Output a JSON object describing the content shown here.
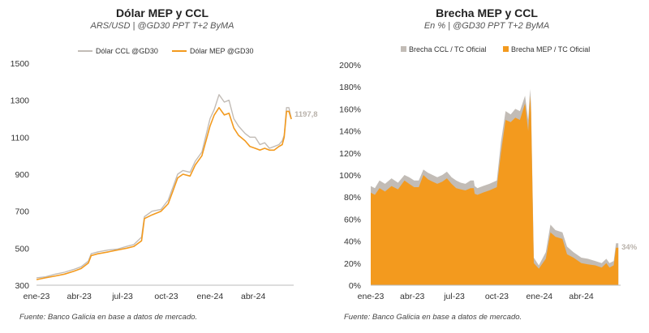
{
  "colors": {
    "mep": "#f39a1e",
    "ccl": "#c2bcb6",
    "endlabel": "#b9b2ab",
    "axis": "#333333"
  },
  "footnote": "Fuente: Banco Galicia en base a datos de mercado.",
  "chart_data": [
    {
      "type": "line",
      "title": "Dólar MEP y CCL",
      "subtitle": "ARS/USD | @GD30 PPT T+2 ByMA",
      "ylim": [
        300,
        1500
      ],
      "yticks": [
        "300",
        "500",
        "700",
        "900",
        "1100",
        "1300",
        "1500"
      ],
      "xtick_labels": [
        "ene-23",
        "abr-23",
        "jul-23",
        "oct-23",
        "ene-24",
        "abr-24"
      ],
      "xlim": [
        "2023-01-01",
        "2024-06-25"
      ],
      "x": [
        "2023-01-01",
        "2023-01-20",
        "2023-02-10",
        "2023-03-01",
        "2023-03-20",
        "2023-04-05",
        "2023-04-20",
        "2023-04-26",
        "2023-05-10",
        "2023-06-01",
        "2023-06-20",
        "2023-07-10",
        "2023-07-25",
        "2023-08-10",
        "2023-08-16",
        "2023-09-01",
        "2023-09-20",
        "2023-10-05",
        "2023-10-15",
        "2023-10-25",
        "2023-11-05",
        "2023-11-20",
        "2023-12-01",
        "2023-12-15",
        "2024-01-01",
        "2024-01-10",
        "2024-01-20",
        "2024-01-31",
        "2024-02-10",
        "2024-02-20",
        "2024-03-01",
        "2024-03-15",
        "2024-03-25",
        "2024-04-05",
        "2024-04-15",
        "2024-04-25",
        "2024-05-05",
        "2024-05-15",
        "2024-05-25",
        "2024-06-01",
        "2024-06-05",
        "2024-06-10",
        "2024-06-15",
        "2024-06-20"
      ],
      "series": [
        {
          "name": "Dólar CCL @GD30",
          "values": [
            340,
            345,
            360,
            370,
            385,
            400,
            430,
            470,
            480,
            490,
            495,
            510,
            520,
            560,
            670,
            700,
            710,
            760,
            830,
            900,
            920,
            910,
            970,
            1020,
            1200,
            1250,
            1330,
            1290,
            1300,
            1200,
            1160,
            1120,
            1100,
            1100,
            1060,
            1070,
            1040,
            1050,
            1060,
            1080,
            1110,
            1260,
            1260,
            1200
          ]
        },
        {
          "name": "Dólar MEP @GD30",
          "values": [
            330,
            340,
            350,
            360,
            375,
            390,
            420,
            460,
            470,
            480,
            490,
            500,
            510,
            540,
            660,
            680,
            700,
            740,
            810,
            880,
            900,
            890,
            950,
            1000,
            1160,
            1220,
            1260,
            1220,
            1230,
            1150,
            1110,
            1080,
            1050,
            1040,
            1030,
            1040,
            1030,
            1030,
            1050,
            1060,
            1100,
            1240,
            1240,
            1197.8
          ]
        }
      ],
      "end_label": "1197,8"
    },
    {
      "type": "area",
      "title": "Brecha MEP y CCL",
      "subtitle": "En % | @GD30 PPT T+2 ByMA",
      "ylim": [
        0,
        200
      ],
      "yticks": [
        "0%",
        "20%",
        "40%",
        "60%",
        "80%",
        "100%",
        "120%",
        "140%",
        "160%",
        "180%",
        "200%"
      ],
      "xtick_labels": [
        "ene-23",
        "abr-23",
        "jul-23",
        "oct-23",
        "ene-24",
        "abr-24"
      ],
      "xlim": [
        "2023-01-01",
        "2024-06-25"
      ],
      "x": [
        "2023-01-01",
        "2023-01-10",
        "2023-01-20",
        "2023-02-01",
        "2023-02-15",
        "2023-03-01",
        "2023-03-15",
        "2023-03-25",
        "2023-04-05",
        "2023-04-15",
        "2023-04-25",
        "2023-05-05",
        "2023-05-15",
        "2023-05-25",
        "2023-06-05",
        "2023-06-15",
        "2023-06-25",
        "2023-07-05",
        "2023-07-15",
        "2023-07-25",
        "2023-08-05",
        "2023-08-12",
        "2023-08-14",
        "2023-08-20",
        "2023-09-01",
        "2023-09-15",
        "2023-10-01",
        "2023-10-10",
        "2023-10-20",
        "2023-10-31",
        "2023-11-10",
        "2023-11-20",
        "2023-12-01",
        "2023-12-08",
        "2023-12-12",
        "2023-12-14",
        "2023-12-20",
        "2023-12-31",
        "2024-01-15",
        "2024-01-25",
        "2024-02-05",
        "2024-02-20",
        "2024-03-01",
        "2024-03-15",
        "2024-04-01",
        "2024-04-15",
        "2024-05-01",
        "2024-05-15",
        "2024-05-25",
        "2024-06-01",
        "2024-06-10",
        "2024-06-15",
        "2024-06-20"
      ],
      "series": [
        {
          "name": "Brecha CCL / TC Oficial",
          "values": [
            90,
            88,
            95,
            92,
            97,
            93,
            100,
            98,
            95,
            95,
            105,
            102,
            100,
            98,
            100,
            103,
            98,
            95,
            93,
            92,
            95,
            95,
            90,
            88,
            90,
            92,
            95,
            130,
            158,
            155,
            160,
            158,
            172,
            150,
            178,
            165,
            25,
            18,
            30,
            55,
            50,
            48,
            35,
            30,
            25,
            24,
            22,
            20,
            24,
            20,
            22,
            38,
            38
          ]
        },
        {
          "name": "Brecha MEP / TC Oficial",
          "values": [
            84,
            82,
            88,
            85,
            90,
            87,
            95,
            92,
            89,
            89,
            100,
            96,
            94,
            92,
            94,
            97,
            92,
            88,
            87,
            86,
            88,
            88,
            83,
            82,
            84,
            86,
            89,
            120,
            150,
            148,
            152,
            150,
            165,
            140,
            172,
            157,
            20,
            15,
            24,
            48,
            44,
            42,
            28,
            25,
            20,
            19,
            18,
            16,
            20,
            16,
            18,
            34,
            34
          ]
        }
      ],
      "end_label": "34%"
    }
  ]
}
